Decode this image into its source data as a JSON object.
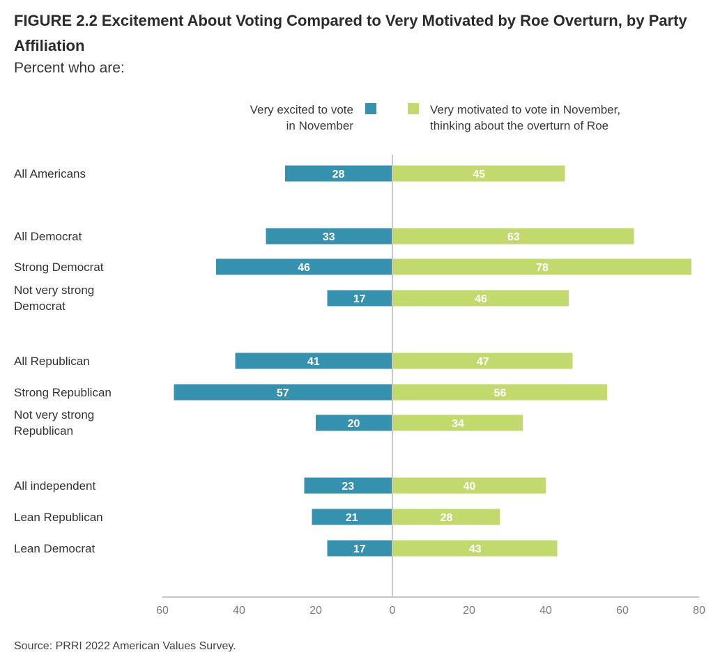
{
  "title": "FIGURE 2.2  Excitement About Voting Compared to Very Motivated by Roe Overturn, by Party Affiliation",
  "subtitle": "Percent who are:",
  "source": "Source: PRRI 2022 American Values Survey.",
  "legend": {
    "left_line1": "Very excited to vote",
    "left_line2": "in November",
    "right_line1": "Very motivated to vote in November,",
    "right_line2": "thinking about the overturn of Roe"
  },
  "colors": {
    "excited": "#3591ad",
    "motivated": "#c2d96e",
    "axis": "#c8c8c8"
  },
  "chart_data": {
    "type": "bar",
    "orientation": "horizontal-diverging",
    "categories": [
      "All Americans",
      "All Democrat",
      "Strong Democrat",
      "Not very strong Democrat",
      "All Republican",
      "Strong Republican",
      "Not very strong Republican",
      "All independent",
      "Lean Republican",
      "Lean Democrat"
    ],
    "category_lines": [
      [
        "All Americans"
      ],
      [
        "All Democrat"
      ],
      [
        "Strong Democrat"
      ],
      [
        "Not very strong",
        "Democrat"
      ],
      [
        "All Republican"
      ],
      [
        "Strong Republican"
      ],
      [
        "Not very strong",
        "Republican"
      ],
      [
        "All independent"
      ],
      [
        "Lean Republican"
      ],
      [
        "Lean Democrat"
      ]
    ],
    "series": [
      {
        "name": "Very excited to vote in November",
        "side": "left",
        "values": [
          28,
          33,
          46,
          17,
          41,
          57,
          20,
          23,
          21,
          17
        ]
      },
      {
        "name": "Very motivated to vote in November, thinking about the overturn of Roe",
        "side": "right",
        "values": [
          45,
          63,
          78,
          46,
          47,
          56,
          34,
          40,
          28,
          43
        ]
      }
    ],
    "xlim": [
      -60,
      80
    ],
    "xticks": [
      -60,
      -40,
      -20,
      0,
      20,
      40,
      60,
      80
    ],
    "xtick_labels": [
      "60",
      "40",
      "20",
      "0",
      "20",
      "40",
      "60",
      "80"
    ],
    "legend_position": "top"
  }
}
